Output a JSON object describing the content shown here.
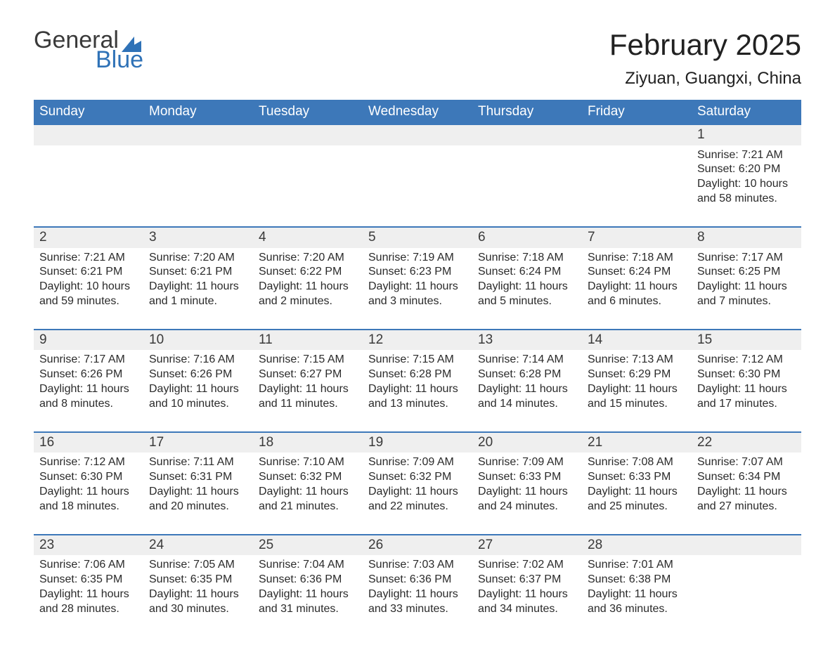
{
  "logo": {
    "word1": "General",
    "word2": "Blue"
  },
  "title": "February 2025",
  "location": "Ziyuan, Guangxi, China",
  "theme": {
    "header_blue": "#3d78b9",
    "cell_gray": "#efefef",
    "background": "#ffffff",
    "text_dark": "#2a2a2a",
    "title_fontsize_pt": 32,
    "location_fontsize_pt": 18,
    "header_fontsize_pt": 14,
    "body_fontsize_pt": 12
  },
  "calendar": {
    "type": "table",
    "columns": [
      "Sunday",
      "Monday",
      "Tuesday",
      "Wednesday",
      "Thursday",
      "Friday",
      "Saturday"
    ],
    "weeks": [
      [
        null,
        null,
        null,
        null,
        null,
        null,
        {
          "n": "1",
          "sunrise": "Sunrise: 7:21 AM",
          "sunset": "Sunset: 6:20 PM",
          "day": "Daylight: 10 hours and 58 minutes."
        }
      ],
      [
        {
          "n": "2",
          "sunrise": "Sunrise: 7:21 AM",
          "sunset": "Sunset: 6:21 PM",
          "day": "Daylight: 10 hours and 59 minutes."
        },
        {
          "n": "3",
          "sunrise": "Sunrise: 7:20 AM",
          "sunset": "Sunset: 6:21 PM",
          "day": "Daylight: 11 hours and 1 minute."
        },
        {
          "n": "4",
          "sunrise": "Sunrise: 7:20 AM",
          "sunset": "Sunset: 6:22 PM",
          "day": "Daylight: 11 hours and 2 minutes."
        },
        {
          "n": "5",
          "sunrise": "Sunrise: 7:19 AM",
          "sunset": "Sunset: 6:23 PM",
          "day": "Daylight: 11 hours and 3 minutes."
        },
        {
          "n": "6",
          "sunrise": "Sunrise: 7:18 AM",
          "sunset": "Sunset: 6:24 PM",
          "day": "Daylight: 11 hours and 5 minutes."
        },
        {
          "n": "7",
          "sunrise": "Sunrise: 7:18 AM",
          "sunset": "Sunset: 6:24 PM",
          "day": "Daylight: 11 hours and 6 minutes."
        },
        {
          "n": "8",
          "sunrise": "Sunrise: 7:17 AM",
          "sunset": "Sunset: 6:25 PM",
          "day": "Daylight: 11 hours and 7 minutes."
        }
      ],
      [
        {
          "n": "9",
          "sunrise": "Sunrise: 7:17 AM",
          "sunset": "Sunset: 6:26 PM",
          "day": "Daylight: 11 hours and 8 minutes."
        },
        {
          "n": "10",
          "sunrise": "Sunrise: 7:16 AM",
          "sunset": "Sunset: 6:26 PM",
          "day": "Daylight: 11 hours and 10 minutes."
        },
        {
          "n": "11",
          "sunrise": "Sunrise: 7:15 AM",
          "sunset": "Sunset: 6:27 PM",
          "day": "Daylight: 11 hours and 11 minutes."
        },
        {
          "n": "12",
          "sunrise": "Sunrise: 7:15 AM",
          "sunset": "Sunset: 6:28 PM",
          "day": "Daylight: 11 hours and 13 minutes."
        },
        {
          "n": "13",
          "sunrise": "Sunrise: 7:14 AM",
          "sunset": "Sunset: 6:28 PM",
          "day": "Daylight: 11 hours and 14 minutes."
        },
        {
          "n": "14",
          "sunrise": "Sunrise: 7:13 AM",
          "sunset": "Sunset: 6:29 PM",
          "day": "Daylight: 11 hours and 15 minutes."
        },
        {
          "n": "15",
          "sunrise": "Sunrise: 7:12 AM",
          "sunset": "Sunset: 6:30 PM",
          "day": "Daylight: 11 hours and 17 minutes."
        }
      ],
      [
        {
          "n": "16",
          "sunrise": "Sunrise: 7:12 AM",
          "sunset": "Sunset: 6:30 PM",
          "day": "Daylight: 11 hours and 18 minutes."
        },
        {
          "n": "17",
          "sunrise": "Sunrise: 7:11 AM",
          "sunset": "Sunset: 6:31 PM",
          "day": "Daylight: 11 hours and 20 minutes."
        },
        {
          "n": "18",
          "sunrise": "Sunrise: 7:10 AM",
          "sunset": "Sunset: 6:32 PM",
          "day": "Daylight: 11 hours and 21 minutes."
        },
        {
          "n": "19",
          "sunrise": "Sunrise: 7:09 AM",
          "sunset": "Sunset: 6:32 PM",
          "day": "Daylight: 11 hours and 22 minutes."
        },
        {
          "n": "20",
          "sunrise": "Sunrise: 7:09 AM",
          "sunset": "Sunset: 6:33 PM",
          "day": "Daylight: 11 hours and 24 minutes."
        },
        {
          "n": "21",
          "sunrise": "Sunrise: 7:08 AM",
          "sunset": "Sunset: 6:33 PM",
          "day": "Daylight: 11 hours and 25 minutes."
        },
        {
          "n": "22",
          "sunrise": "Sunrise: 7:07 AM",
          "sunset": "Sunset: 6:34 PM",
          "day": "Daylight: 11 hours and 27 minutes."
        }
      ],
      [
        {
          "n": "23",
          "sunrise": "Sunrise: 7:06 AM",
          "sunset": "Sunset: 6:35 PM",
          "day": "Daylight: 11 hours and 28 minutes."
        },
        {
          "n": "24",
          "sunrise": "Sunrise: 7:05 AM",
          "sunset": "Sunset: 6:35 PM",
          "day": "Daylight: 11 hours and 30 minutes."
        },
        {
          "n": "25",
          "sunrise": "Sunrise: 7:04 AM",
          "sunset": "Sunset: 6:36 PM",
          "day": "Daylight: 11 hours and 31 minutes."
        },
        {
          "n": "26",
          "sunrise": "Sunrise: 7:03 AM",
          "sunset": "Sunset: 6:36 PM",
          "day": "Daylight: 11 hours and 33 minutes."
        },
        {
          "n": "27",
          "sunrise": "Sunrise: 7:02 AM",
          "sunset": "Sunset: 6:37 PM",
          "day": "Daylight: 11 hours and 34 minutes."
        },
        {
          "n": "28",
          "sunrise": "Sunrise: 7:01 AM",
          "sunset": "Sunset: 6:38 PM",
          "day": "Daylight: 11 hours and 36 minutes."
        },
        null
      ]
    ]
  }
}
